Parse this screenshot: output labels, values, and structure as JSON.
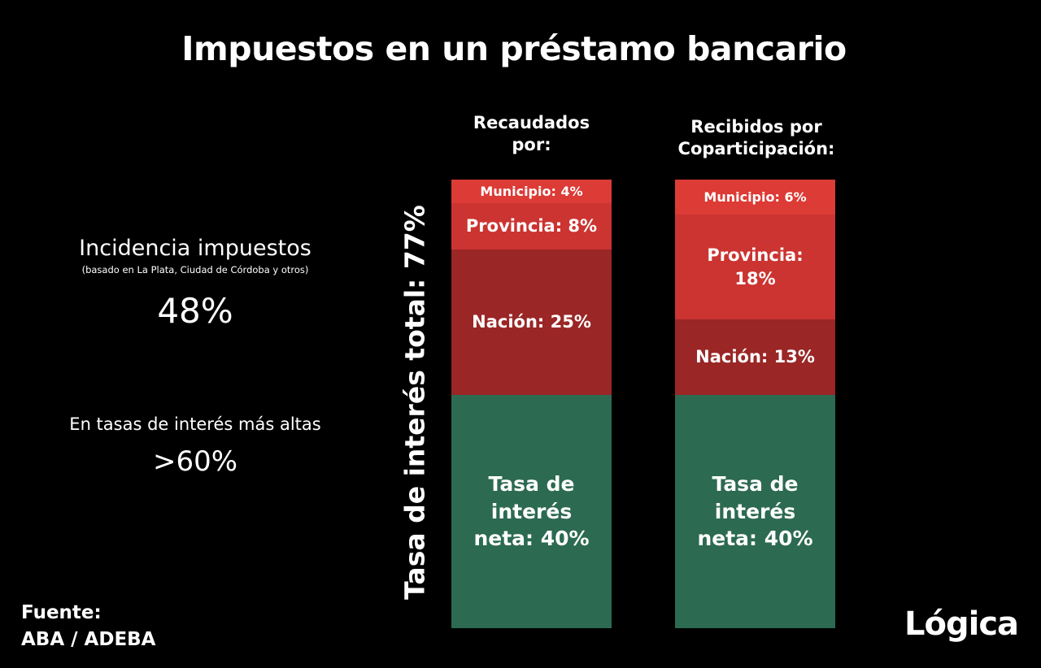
{
  "chart_data": {
    "type": "bar",
    "stacked": true,
    "title": "Impuestos en un préstamo bancario",
    "ylabel": "Tasa de interés total: 77%",
    "total": 77,
    "colors": {
      "Municipio": "#dc3b36",
      "Provincia": "#cb3431",
      "Nación": "#9a2626",
      "Tasa de interés neta": "#2c6a51"
    },
    "bars": [
      {
        "category": "Recaudados por:",
        "segments": [
          {
            "name": "Municipio",
            "value": 4,
            "label": "Municipio: 4%"
          },
          {
            "name": "Provincia",
            "value": 8,
            "label": "Provincia: 8%"
          },
          {
            "name": "Nación",
            "value": 25,
            "label": "Nación: 25%"
          },
          {
            "name": "Tasa de interés neta",
            "value": 40,
            "label": "Tasa de interés neta: 40%"
          }
        ]
      },
      {
        "category": "Recibidos por Coparticipación:",
        "segments": [
          {
            "name": "Municipio",
            "value": 6,
            "label": "Municipio: 6%"
          },
          {
            "name": "Provincia",
            "value": 18,
            "label": "Provincia: 18%"
          },
          {
            "name": "Nación",
            "value": 13,
            "label": "Nación: 13%"
          },
          {
            "name": "Tasa de interés neta",
            "value": 40,
            "label": "Tasa de interés neta: 40%"
          }
        ]
      }
    ]
  },
  "incidence": {
    "label": "Incidencia impuestos",
    "note": "(basado en La Plata, Ciudad de Córdoba y otros)",
    "value": "48%"
  },
  "higher_rates": {
    "label": "En tasas de interés más altas",
    "value": ">60%"
  },
  "source": {
    "label": "Fuente:",
    "value": "ABA / ADEBA"
  },
  "logo": "Lógica"
}
